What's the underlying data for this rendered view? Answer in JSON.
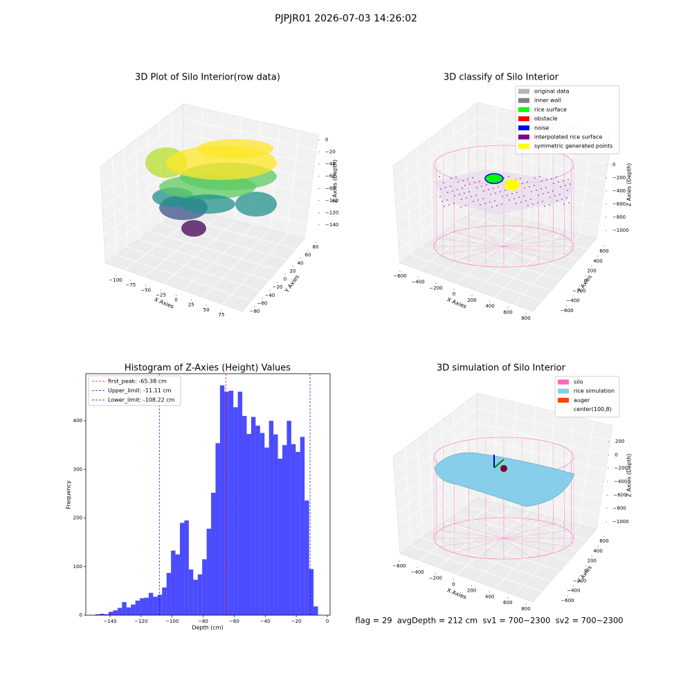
{
  "title": "PJPJR01 2026-07-03 14:26:02",
  "footer": "flag = 29  avgDepth = 212 cm  sv1 = 700~2300  sv2 = 700~2300",
  "chart_data": [
    {
      "type": "scatter3d",
      "title": "3D Plot of Silo Interior(row data)",
      "xlabel": "X Axies",
      "ylabel": "Y Axies",
      "zlabel": "Z Axies (Depth)",
      "xticks": [
        {
          "value": -100,
          "label": "−100"
        },
        {
          "value": -75,
          "label": "−75"
        },
        {
          "value": -50,
          "label": "−50"
        },
        {
          "value": -25,
          "label": "−25"
        },
        0,
        25,
        50,
        75
      ],
      "yticks": [
        {
          "value": -80,
          "label": "−80"
        },
        {
          "value": -60,
          "label": "−60"
        },
        {
          "value": -40,
          "label": "−40"
        },
        {
          "value": -20,
          "label": "−20"
        },
        0,
        20,
        40,
        60,
        80
      ],
      "zticks": [
        0,
        {
          "value": -20,
          "label": "−20"
        },
        {
          "value": -40,
          "label": "−40"
        },
        {
          "value": -60,
          "label": "−60"
        },
        {
          "value": -80,
          "label": "−80"
        },
        {
          "value": -100,
          "label": "−100"
        },
        {
          "value": -120,
          "label": "−120"
        },
        {
          "value": -140,
          "label": "−140"
        }
      ]
    },
    {
      "type": "classify3d",
      "title": "3D classify of Silo Interior",
      "xlabel": "X Axies",
      "ylabel": "Y Axies",
      "zlabel": "Z Axies (Depth)",
      "xticks": [
        {
          "value": -600,
          "label": "−600"
        },
        {
          "value": -400,
          "label": "−400"
        },
        {
          "value": -200,
          "label": "−200"
        },
        0,
        200,
        400,
        600,
        800
      ],
      "yticks": [
        {
          "value": -600,
          "label": "−600"
        },
        {
          "value": -400,
          "label": "−400"
        },
        {
          "value": -200,
          "label": "−200"
        },
        0,
        200,
        400,
        600
      ],
      "zticks": [
        0,
        {
          "value": -200,
          "label": "−200"
        },
        {
          "value": -400,
          "label": "−400"
        },
        {
          "value": -600,
          "label": "−600"
        },
        {
          "value": -800,
          "label": "−800"
        },
        {
          "value": -1000,
          "label": "−1000"
        }
      ],
      "legend": [
        {
          "name": "original data",
          "color": "#b3b3b3"
        },
        {
          "name": "inner wall",
          "color": "#808080"
        },
        {
          "name": "rice surface",
          "color": "#00ff00"
        },
        {
          "name": "obstacle",
          "color": "#ff0000"
        },
        {
          "name": "noise",
          "color": "#0000ff"
        },
        {
          "name": "interpolated rice surface",
          "color": "#800080"
        },
        {
          "name": "symmetric generated points",
          "color": "#ffff00"
        }
      ]
    },
    {
      "type": "histogram",
      "title": "Histogram of Z-Axies (Height) Values",
      "xlabel": "Depth (cm)",
      "ylabel": "Frequency",
      "color": "#0000ff",
      "bins": [
        -149.5,
        -146.63,
        -143.76,
        -140.89,
        -138.02,
        -135.15,
        -132.28,
        -129.41,
        -126.54,
        -123.67,
        -120.8,
        -117.93,
        -115.06,
        -112.19,
        -109.32,
        -106.45,
        -103.58,
        -100.71,
        -97.84,
        -94.97,
        -92.1,
        -89.23,
        -86.36,
        -83.49,
        -80.62,
        -77.75,
        -74.88,
        -72.01,
        -69.14,
        -66.27,
        -63.4,
        -60.53,
        -57.66,
        -54.79,
        -51.92,
        -49.05,
        -46.18,
        -43.31,
        -40.44,
        -37.57,
        -34.7,
        -31.83,
        -28.96,
        -26.09,
        -23.22,
        -20.35,
        -17.48,
        -14.61,
        -11.74,
        -8.87,
        -6.0
      ],
      "values": [
        2,
        3,
        2,
        7,
        10,
        15,
        27,
        16,
        22,
        30,
        35,
        36,
        46,
        38,
        42,
        57,
        87,
        133,
        125,
        190,
        195,
        94,
        73,
        84,
        115,
        178,
        252,
        354,
        473,
        460,
        462,
        428,
        460,
        410,
        373,
        408,
        390,
        375,
        345,
        400,
        372,
        322,
        350,
        400,
        352,
        336,
        367,
        236,
        95,
        18
      ],
      "lines": [
        {
          "name": "first_peak: -65.38 cm",
          "value": -65.38,
          "color": "#ff0000"
        },
        {
          "name": "Upper_limit: -11.11 cm",
          "value": -11.11,
          "color": "#0000ff"
        },
        {
          "name": "Lower_limit: -108.22 cm",
          "value": -108.22,
          "color": "#0000ff"
        }
      ],
      "xlim": [
        -155.6,
        1.8
      ],
      "ylim": [
        0,
        497
      ],
      "xticks": [
        {
          "value": -140,
          "label": "−140"
        },
        {
          "value": -120,
          "label": "−120"
        },
        {
          "value": -100,
          "label": "−100"
        },
        {
          "value": -80,
          "label": "−80"
        },
        {
          "value": -60,
          "label": "−60"
        },
        {
          "value": -40,
          "label": "−40"
        },
        {
          "value": -20,
          "label": "−20"
        },
        0
      ],
      "yticks": [
        0,
        100,
        200,
        300,
        400
      ]
    },
    {
      "type": "simulation3d",
      "title": "3D simulation of Silo Interior",
      "xlabel": "X Axies",
      "ylabel": "Y Axies",
      "zlabel": "Z Axies (Depth)",
      "xticks": [
        {
          "value": -600,
          "label": "−600"
        },
        {
          "value": -400,
          "label": "−400"
        },
        {
          "value": -200,
          "label": "−200"
        },
        0,
        200,
        400,
        600,
        800
      ],
      "yticks": [
        {
          "value": -600,
          "label": "−600"
        },
        {
          "value": -400,
          "label": "−400"
        },
        {
          "value": -200,
          "label": "−200"
        },
        0,
        200,
        400,
        600
      ],
      "zticks": [
        200,
        0,
        {
          "value": -200,
          "label": "−200"
        },
        {
          "value": -400,
          "label": "−400"
        },
        {
          "value": -600,
          "label": "−600"
        },
        {
          "value": -800,
          "label": "−800"
        },
        {
          "value": -1000,
          "label": "−1000"
        }
      ],
      "legend": [
        {
          "name": "silo",
          "color": "#ff69b4"
        },
        {
          "name": "rice simulation",
          "color": "#87ceeb"
        },
        {
          "name": "auger",
          "color": "#ff4500"
        },
        {
          "name": "center(100,8)",
          "color": "#ffffff"
        }
      ]
    }
  ]
}
